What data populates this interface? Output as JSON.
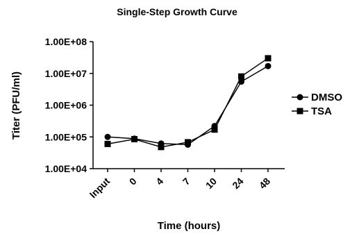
{
  "chart_data": {
    "type": "line",
    "title": "Single-Step Growth Curve",
    "xlabel": "Time (hours)",
    "ylabel": "Titer (PFU/ml)",
    "y_scale": "log",
    "ylim": [
      10000,
      100000000
    ],
    "y_ticks": [
      {
        "value": 10000,
        "label": "1.00E+04"
      },
      {
        "value": 100000,
        "label": "1.00E+05"
      },
      {
        "value": 1000000,
        "label": "1.00E+06"
      },
      {
        "value": 10000000,
        "label": "1.00E+07"
      },
      {
        "value": 100000000,
        "label": "1.00E+08"
      }
    ],
    "categories": [
      "Input",
      "0",
      "4",
      "7",
      "10",
      "24",
      "48"
    ],
    "grid": false,
    "legend_position": "right",
    "series": [
      {
        "name": "DMSO",
        "marker": "circle",
        "color": "#000000",
        "values": [
          100000,
          88000,
          62000,
          57000,
          220000,
          5500000,
          17000000
        ]
      },
      {
        "name": "TSA",
        "marker": "square",
        "color": "#000000",
        "values": [
          60000,
          85000,
          48000,
          68000,
          170000,
          8000000,
          30000000
        ]
      }
    ]
  }
}
